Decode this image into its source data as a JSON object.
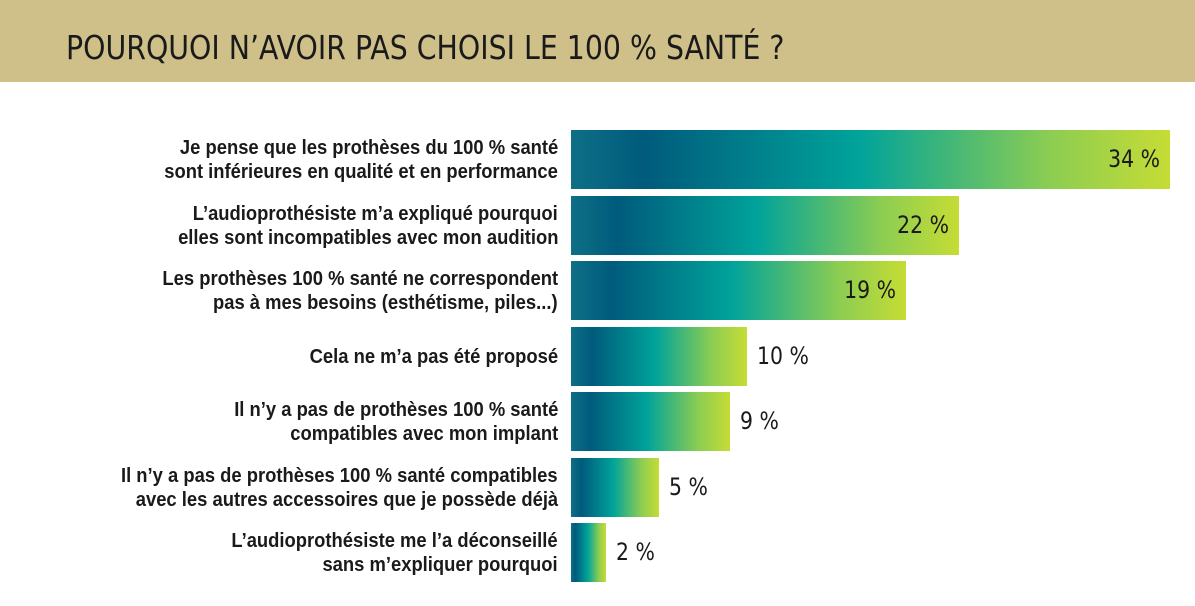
{
  "title": "POURQUOI N’AVOIR PAS CHOISI LE 100 % SANTÉ ?",
  "colors": {
    "header_bg": "#cfc08a",
    "bar_gradient": [
      "#0e6f86",
      "#005b7c",
      "#00a39a",
      "#8ccd52",
      "#c6dc34"
    ]
  },
  "chart_data": {
    "type": "bar",
    "orientation": "horizontal",
    "title": "POURQUOI N’AVOIR PAS CHOISI LE 100 % SANTÉ ?",
    "categories": [
      [
        "Je pense que les prothèses du 100 % santé",
        "sont inférieures en qualité et en performance"
      ],
      [
        "L’audioprothésiste m’a expliqué pourquoi",
        "elles sont incompatibles avec mon audition"
      ],
      [
        "Les prothèses 100 % santé ne correspondent",
        "pas à mes besoins (esthétisme, piles...)"
      ],
      [
        "Cela ne m’a pas été proposé"
      ],
      [
        "Il n’y a pas de prothèses 100 % santé",
        "compatibles avec mon implant"
      ],
      [
        "Il n’y a pas de prothèses 100 % santé compatibles",
        "avec les autres accessoires que je possède déjà"
      ],
      [
        "L’audioprothésiste me l’a déconseillé",
        "sans m’expliquer pourquoi"
      ]
    ],
    "values": [
      34,
      22,
      19,
      10,
      9,
      5,
      2
    ],
    "value_labels": [
      "34 %",
      "22 %",
      "19 %",
      "10 %",
      "9 %",
      "5 %",
      "2 %"
    ],
    "unit": "%",
    "xlim": [
      0,
      34
    ],
    "grid": false,
    "legend": "none"
  }
}
